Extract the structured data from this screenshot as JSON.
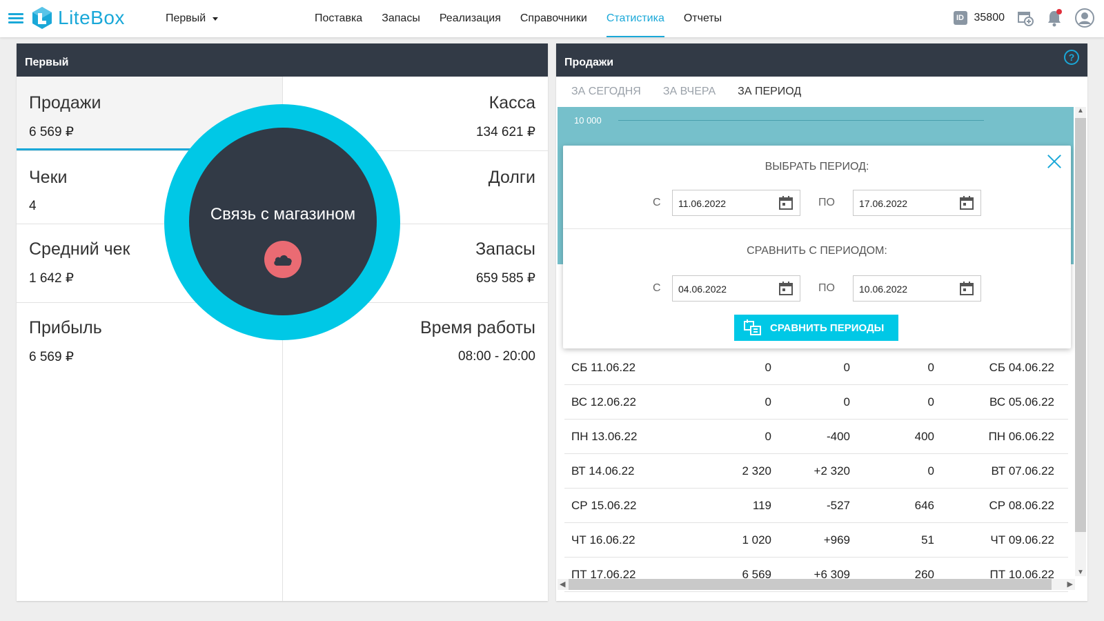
{
  "app": {
    "logo_text": "LiteBox",
    "store_selector": "Первый",
    "nav": [
      "Поставка",
      "Запасы",
      "Реализация",
      "Справочники",
      "Статистика",
      "Отчеты"
    ],
    "active_nav": "Статистика",
    "user_id": "35800",
    "accent_color": "#1aa8d8"
  },
  "left_panel": {
    "title": "Первый",
    "kpis": {
      "sales": {
        "label": "Продажи",
        "value": "6 569 ₽"
      },
      "cash": {
        "label": "Касса",
        "value": "134 621 ₽"
      },
      "checks": {
        "label": "Чеки",
        "value": "4"
      },
      "debts": {
        "label": "Долги",
        "value": ""
      },
      "avg_check": {
        "label": "Средний чек",
        "value": "1 642 ₽"
      },
      "stock": {
        "label": "Запасы",
        "value": "659 585 ₽"
      },
      "profit": {
        "label": "Прибыль",
        "value": "6 569 ₽"
      },
      "hours": {
        "label": "Время работы",
        "value": "08:00 - 20:00"
      }
    },
    "overlay": {
      "text": "Связь с магазином"
    }
  },
  "right_panel": {
    "title": "Продажи",
    "tabs": [
      "ЗА СЕГОДНЯ",
      "ЗА ВЧЕРА",
      "ЗА ПЕРИОД"
    ],
    "active_tab": "ЗА ПЕРИОД",
    "chart_axis_label": "10 000",
    "modal": {
      "select_title": "ВЫБРАТЬ ПЕРИОД:",
      "compare_title": "СРАВНИТЬ С ПЕРИОДОМ:",
      "from_label": "С",
      "to_label": "ПО",
      "period_from": "11.06.2022",
      "period_to": "17.06.2022",
      "compare_from": "04.06.2022",
      "compare_to": "10.06.2022",
      "button": "СРАВНИТЬ ПЕРИОДЫ"
    },
    "rows": [
      {
        "date": "СБ 11.06.22",
        "value": "0",
        "diff": "0",
        "prev": "0",
        "prev_date": "СБ 04.06.22"
      },
      {
        "date": "ВС 12.06.22",
        "value": "0",
        "diff": "0",
        "prev": "0",
        "prev_date": "ВС 05.06.22"
      },
      {
        "date": "ПН 13.06.22",
        "value": "0",
        "diff": "-400",
        "prev": "400",
        "prev_date": "ПН 06.06.22"
      },
      {
        "date": "ВТ 14.06.22",
        "value": "2 320",
        "diff": "+2 320",
        "prev": "0",
        "prev_date": "ВТ 07.06.22"
      },
      {
        "date": "СР 15.06.22",
        "value": "119",
        "diff": "-527",
        "prev": "646",
        "prev_date": "СР 08.06.22"
      },
      {
        "date": "ЧТ 16.06.22",
        "value": "1 020",
        "diff": "+969",
        "prev": "51",
        "prev_date": "ЧТ 09.06.22"
      },
      {
        "date": "ПТ 17.06.22",
        "value": "6 569",
        "diff": "+6 309",
        "prev": "260",
        "prev_date": "ПТ 10.06.22"
      }
    ]
  }
}
